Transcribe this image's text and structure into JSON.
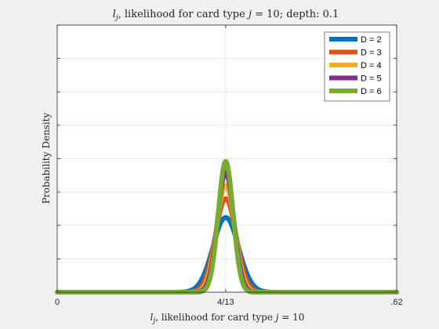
{
  "chart_data": {
    "type": "line",
    "title": "l_j, likelihood for card type j = 10; depth: 0.1",
    "title_parts": {
      "var": "l",
      "sub": "j",
      "text1": ", likelihood for card type ",
      "var2": "j",
      "text2": " = 10; depth: 0.1"
    },
    "xlabel": "l_j, likelihood for card type j = 10",
    "xlabel_parts": {
      "var": "l",
      "sub": "j",
      "text1": ", likelihood for card type ",
      "var2": "j",
      "text2": " = 10"
    },
    "ylabel": "Probability Density",
    "xlim": [
      0,
      0.62
    ],
    "ylim": [
      0,
      1
    ],
    "x_ticks": [
      {
        "value": 0,
        "label": "0"
      },
      {
        "value": 0.3077,
        "label": "4/13"
      },
      {
        "value": 0.62,
        "label": ".62"
      }
    ],
    "y_ticks": [
      0,
      0.125,
      0.25,
      0.375,
      0.5,
      0.625,
      0.75,
      0.875,
      1
    ],
    "grid": true,
    "legend_position": "top-right",
    "peak_x": 0.3077,
    "series": [
      {
        "name": "D = 2",
        "color": "#0072BD",
        "peak": 0.28,
        "sigma": 0.0233
      },
      {
        "name": "D = 3",
        "color": "#D95319",
        "peak": 0.35,
        "sigma": 0.019
      },
      {
        "name": "D = 4",
        "color": "#EDB120",
        "peak": 0.4,
        "sigma": 0.0165
      },
      {
        "name": "D = 5",
        "color": "#7E2F8E",
        "peak": 0.45,
        "sigma": 0.0148
      },
      {
        "name": "D = 6",
        "color": "#77AC30",
        "peak": 0.49,
        "sigma": 0.0135
      }
    ]
  }
}
